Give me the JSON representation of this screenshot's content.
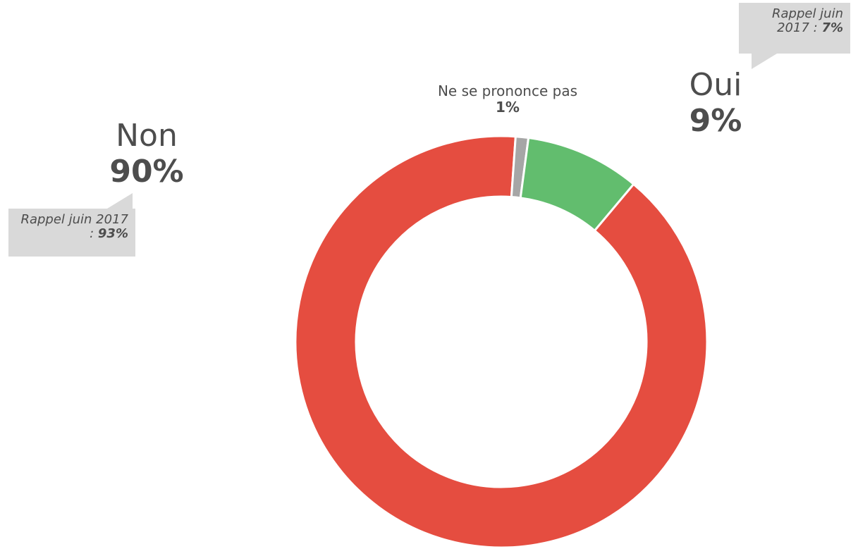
{
  "chart_data": {
    "type": "pie",
    "donut": true,
    "slices": [
      {
        "name": "Oui",
        "value": 9,
        "label": "9%",
        "color": "#62bd6e"
      },
      {
        "name": "Non",
        "value": 90,
        "label": "90%",
        "color": "#e54d40"
      },
      {
        "name": "Ne se prononce pas",
        "value": 1,
        "label": "1%",
        "color": "#a6a6a6"
      }
    ],
    "callouts": {
      "oui": {
        "prefix": "Rappel juin 2017 : ",
        "value": "7%"
      },
      "non": {
        "prefix": "Rappel juin 2017 : ",
        "value": "93%"
      }
    }
  }
}
